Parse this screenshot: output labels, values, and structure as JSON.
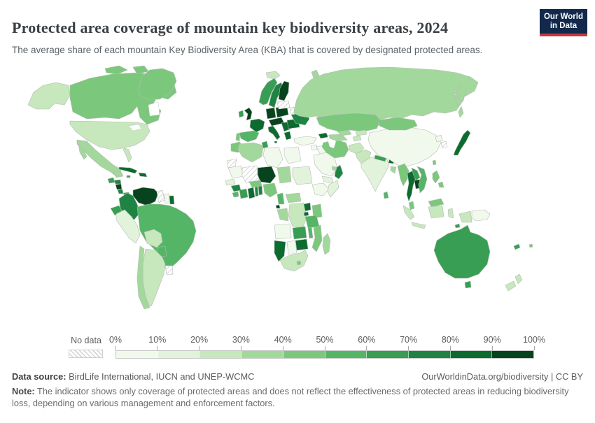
{
  "header": {
    "title": "Protected area coverage of mountain key biodiversity areas, 2024",
    "subtitle": "The average share of each mountain Key Biodiversity Area (KBA) that is covered by designated protected areas.",
    "logo_line1": "Our World",
    "logo_line2": "in Data"
  },
  "legend": {
    "no_data_label": "No data",
    "ticks": [
      "0%",
      "10%",
      "20%",
      "30%",
      "40%",
      "50%",
      "60%",
      "70%",
      "80%",
      "90%",
      "100%"
    ]
  },
  "footer": {
    "source_label": "Data source:",
    "source_text": "BirdLife International, IUCN and UNEP-WCMC",
    "rights": "OurWorldinData.org/biodiversity | CC BY",
    "note_label": "Note:",
    "note_text": "The indicator shows only coverage of protected areas and does not reflect the effectiveness of protected areas in reducing biodiversity loss, depending on various management and enforcement factors."
  },
  "colors": {
    "logo_navy": "#12294b",
    "logo_red": "#c5383a",
    "title_color": "#3b4045",
    "border_gray": "#b5bbb5"
  },
  "chart_data": {
    "type": "choropleth",
    "title": "Protected area coverage of mountain key biodiversity areas",
    "year": 2024,
    "unit": "%",
    "legend_bins": [
      {
        "min": 0,
        "max": 10,
        "color": "#f0f9ec"
      },
      {
        "min": 10,
        "max": 20,
        "color": "#e1f3da"
      },
      {
        "min": 20,
        "max": 30,
        "color": "#c7e7bd"
      },
      {
        "min": 30,
        "max": 40,
        "color": "#a3d89c"
      },
      {
        "min": 40,
        "max": 50,
        "color": "#7bc87c"
      },
      {
        "min": 50,
        "max": 60,
        "color": "#55b567"
      },
      {
        "min": 60,
        "max": 70,
        "color": "#379e53"
      },
      {
        "min": 70,
        "max": 80,
        "color": "#1e8443"
      },
      {
        "min": 80,
        "max": 90,
        "color": "#0c6b2f"
      },
      {
        "min": 90,
        "max": 100,
        "color": "#07431d"
      }
    ],
    "no_data": [
      "Guyana",
      "Uruguay",
      "Western Sahara",
      "Mali",
      "Estonia",
      "Latvia",
      "Lithuania",
      "Belarus",
      "South Korea"
    ],
    "countries": [
      {
        "name": "Canada",
        "value": 45
      },
      {
        "name": "United States",
        "value": 25
      },
      {
        "name": "Greenland",
        "value": 45
      },
      {
        "name": "Mexico",
        "value": 35
      },
      {
        "name": "Guatemala",
        "value": 65
      },
      {
        "name": "Honduras",
        "value": 75
      },
      {
        "name": "Nicaragua",
        "value": 95
      },
      {
        "name": "Costa Rica",
        "value": 75
      },
      {
        "name": "Panama",
        "value": 65
      },
      {
        "name": "Cuba",
        "value": 85
      },
      {
        "name": "Dominican Republic",
        "value": 85
      },
      {
        "name": "Haiti",
        "value": 45
      },
      {
        "name": "Jamaica",
        "value": 65
      },
      {
        "name": "Venezuela",
        "value": 95
      },
      {
        "name": "Colombia",
        "value": 75
      },
      {
        "name": "Ecuador",
        "value": 65
      },
      {
        "name": "Peru",
        "value": 15
      },
      {
        "name": "Brazil",
        "value": 55
      },
      {
        "name": "Bolivia",
        "value": 25
      },
      {
        "name": "Paraguay",
        "value": 55
      },
      {
        "name": "Chile",
        "value": 35
      },
      {
        "name": "Argentina",
        "value": 25
      },
      {
        "name": "Suriname",
        "value": 5
      },
      {
        "name": "French Guiana",
        "value": 85
      },
      {
        "name": "Trinidad and Tobago",
        "value": 85
      },
      {
        "name": "Iceland",
        "value": 25
      },
      {
        "name": "Ireland",
        "value": 65
      },
      {
        "name": "United Kingdom",
        "value": 95
      },
      {
        "name": "Norway",
        "value": 65
      },
      {
        "name": "Sweden",
        "value": 75
      },
      {
        "name": "Finland",
        "value": 95
      },
      {
        "name": "France",
        "value": 85
      },
      {
        "name": "Spain",
        "value": 55
      },
      {
        "name": "Portugal",
        "value": 45
      },
      {
        "name": "Germany",
        "value": 95
      },
      {
        "name": "Poland",
        "value": 95
      },
      {
        "name": "Czechia",
        "value": 95
      },
      {
        "name": "Slovakia",
        "value": 95
      },
      {
        "name": "Hungary",
        "value": 95
      },
      {
        "name": "Austria",
        "value": 95
      },
      {
        "name": "Switzerland",
        "value": 95
      },
      {
        "name": "Italy",
        "value": 85
      },
      {
        "name": "Serbia",
        "value": 85
      },
      {
        "name": "Greece",
        "value": 85
      },
      {
        "name": "Romania",
        "value": 85
      },
      {
        "name": "Bulgaria",
        "value": 85
      },
      {
        "name": "Ukraine",
        "value": 75
      },
      {
        "name": "Russia",
        "value": 35
      },
      {
        "name": "Turkey",
        "value": 5
      },
      {
        "name": "Georgia",
        "value": 75
      },
      {
        "name": "Armenia",
        "value": 85
      },
      {
        "name": "Azerbaijan",
        "value": 85
      },
      {
        "name": "Morocco",
        "value": 45
      },
      {
        "name": "Algeria",
        "value": 35
      },
      {
        "name": "Tunisia",
        "value": 65
      },
      {
        "name": "Libya",
        "value": 5
      },
      {
        "name": "Egypt",
        "value": 5
      },
      {
        "name": "Mauritania",
        "value": 5
      },
      {
        "name": "Niger",
        "value": 95
      },
      {
        "name": "Chad",
        "value": 35
      },
      {
        "name": "Sudan",
        "value": 15
      },
      {
        "name": "Ethiopia",
        "value": 5
      },
      {
        "name": "Somalia",
        "value": 15
      },
      {
        "name": "Senegal",
        "value": 15
      },
      {
        "name": "Guinea",
        "value": 75
      },
      {
        "name": "Sierra Leone",
        "value": 55
      },
      {
        "name": "Liberia",
        "value": 45
      },
      {
        "name": "Cote d'Ivoire",
        "value": 65
      },
      {
        "name": "Ghana",
        "value": 85
      },
      {
        "name": "Togo",
        "value": 75
      },
      {
        "name": "Benin",
        "value": 75
      },
      {
        "name": "Burkina Faso",
        "value": 45
      },
      {
        "name": "Nigeria",
        "value": 45
      },
      {
        "name": "Cameroon",
        "value": 55
      },
      {
        "name": "Central African Republic",
        "value": 35
      },
      {
        "name": "Equatorial Guinea",
        "value": 95
      },
      {
        "name": "Gabon",
        "value": 35
      },
      {
        "name": "Congo",
        "value": 35
      },
      {
        "name": "Democratic Republic of Congo",
        "value": 25
      },
      {
        "name": "Uganda",
        "value": 85
      },
      {
        "name": "Kenya",
        "value": 45
      },
      {
        "name": "Rwanda",
        "value": 85
      },
      {
        "name": "Burundi",
        "value": 75
      },
      {
        "name": "Tanzania",
        "value": 55
      },
      {
        "name": "Angola",
        "value": 5
      },
      {
        "name": "Zambia",
        "value": 65
      },
      {
        "name": "Malawi",
        "value": 55
      },
      {
        "name": "Mozambique",
        "value": 45
      },
      {
        "name": "Zimbabwe",
        "value": 85
      },
      {
        "name": "Botswana",
        "value": 5
      },
      {
        "name": "Namibia",
        "value": 85
      },
      {
        "name": "South Africa",
        "value": 25
      },
      {
        "name": "Lesotho",
        "value": 45
      },
      {
        "name": "Madagascar",
        "value": 35
      },
      {
        "name": "Saudi Arabia",
        "value": 5
      },
      {
        "name": "Yemen",
        "value": 15
      },
      {
        "name": "Oman",
        "value": 75
      },
      {
        "name": "United Arab Emirates",
        "value": 35
      },
      {
        "name": "Iraq",
        "value": 5
      },
      {
        "name": "Syria",
        "value": 5
      },
      {
        "name": "Iran",
        "value": 45
      },
      {
        "name": "Turkmenistan",
        "value": 35
      },
      {
        "name": "Uzbekistan",
        "value": 35
      },
      {
        "name": "Kazakhstan",
        "value": 45
      },
      {
        "name": "Kyrgyzstan",
        "value": 25
      },
      {
        "name": "Tajikistan",
        "value": 25
      },
      {
        "name": "Afghanistan",
        "value": 25
      },
      {
        "name": "Pakistan",
        "value": 25
      },
      {
        "name": "India",
        "value": 15
      },
      {
        "name": "Nepal",
        "value": 65
      },
      {
        "name": "Bhutan",
        "value": 85
      },
      {
        "name": "Bangladesh",
        "value": 35
      },
      {
        "name": "Sri Lanka",
        "value": 55
      },
      {
        "name": "China",
        "value": 5
      },
      {
        "name": "Mongolia",
        "value": 45
      },
      {
        "name": "North Korea",
        "value": 5
      },
      {
        "name": "Japan",
        "value": 85
      },
      {
        "name": "Taiwan",
        "value": 45
      },
      {
        "name": "Myanmar",
        "value": 45
      },
      {
        "name": "Thailand",
        "value": 85
      },
      {
        "name": "Laos",
        "value": 65
      },
      {
        "name": "Cambodia",
        "value": 95
      },
      {
        "name": "Vietnam",
        "value": 55
      },
      {
        "name": "Malaysia",
        "value": 45
      },
      {
        "name": "Indonesia",
        "value": 25
      },
      {
        "name": "Philippines",
        "value": 45
      },
      {
        "name": "Papua New Guinea",
        "value": 5
      },
      {
        "name": "Australia",
        "value": 65
      },
      {
        "name": "New Zealand",
        "value": 25
      },
      {
        "name": "New Caledonia",
        "value": 65
      },
      {
        "name": "Solomon Islands",
        "value": 65
      },
      {
        "name": "Fiji",
        "value": 45
      }
    ]
  }
}
